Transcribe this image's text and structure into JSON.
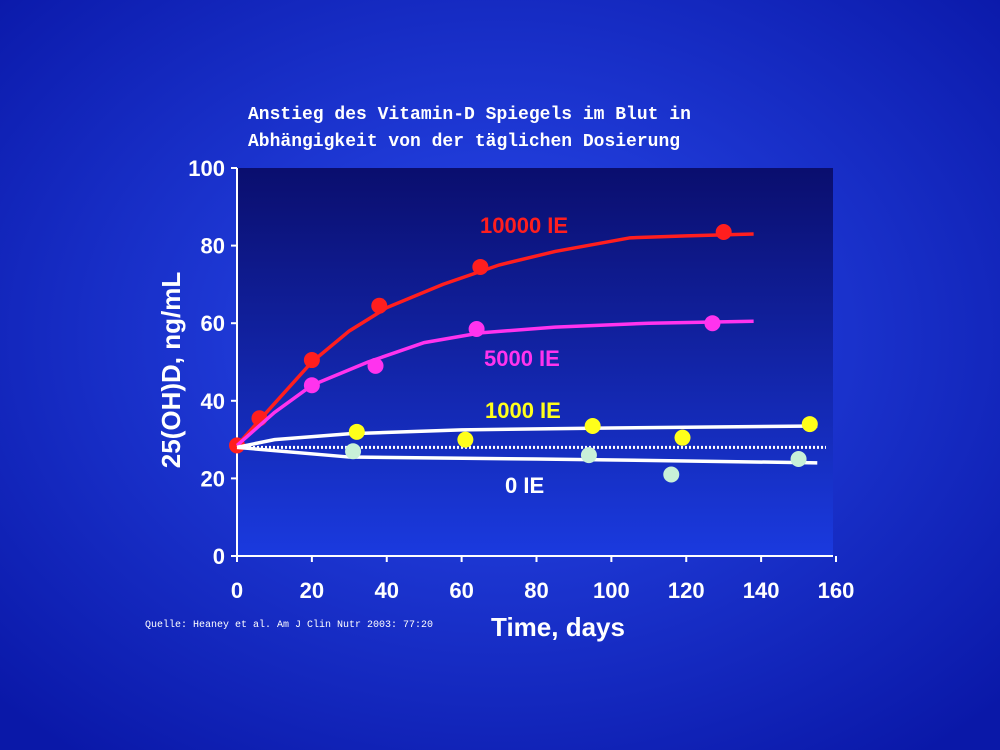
{
  "chart_data": {
    "type": "scatter-fit",
    "title": [
      "Anstieg des Vitamin-D Spiegels im Blut in",
      "Abhängigkeit von der täglichen Dosierung"
    ],
    "x_label": "Time, days",
    "y_label": "25(OH)D, ng/mL",
    "source": "Quelle: Heaney et al. Am J Clin Nutr 2003: 77:20",
    "xlim": [
      0,
      160
    ],
    "xticks": [
      0,
      20,
      40,
      60,
      80,
      100,
      120,
      140,
      160
    ],
    "ylim": [
      0,
      100
    ],
    "yticks": [
      0,
      20,
      40,
      60,
      80,
      100
    ],
    "baseline": 28,
    "series": [
      {
        "name": "10000 IE",
        "color": "#ff1e1e",
        "line_color": "#ff1e1e",
        "label_color": "#ff1e1e",
        "x": [
          0,
          6,
          20,
          38,
          65,
          130
        ],
        "values": [
          28.5,
          35.5,
          50.5,
          64.5,
          74.5,
          83.5
        ],
        "fit_x": [
          0,
          6,
          20,
          30,
          40,
          55,
          70,
          85,
          105,
          120,
          138
        ],
        "fit_values": [
          28.5,
          35,
          50,
          58,
          64,
          70,
          75,
          78.5,
          82,
          82.5,
          83
        ]
      },
      {
        "name": "5000 IE",
        "color": "#ff33ee",
        "line_color": "#ff33ee",
        "label_color": "#ff33ee",
        "x": [
          20,
          37,
          64,
          127
        ],
        "values": [
          44,
          49,
          58.5,
          60
        ],
        "fit_x": [
          0,
          10,
          20,
          35,
          50,
          65,
          85,
          110,
          138
        ],
        "fit_values": [
          28.5,
          37,
          44,
          50,
          55,
          57.5,
          59,
          60,
          60.5
        ]
      },
      {
        "name": "1000 IE",
        "color": "#ffff1a",
        "line_color": "#ffffff",
        "label_color": "#ffff1a",
        "x": [
          32,
          61,
          95,
          119,
          153
        ],
        "values": [
          32,
          30,
          33.5,
          30.5,
          34
        ],
        "fit_x": [
          0,
          10,
          30,
          60,
          100,
          155
        ],
        "fit_values": [
          28,
          30,
          31.5,
          32.5,
          33,
          33.5
        ]
      },
      {
        "name": "0 IE",
        "color": "#c8f0d8",
        "line_color": "#ffffff",
        "label_color": "#ffffff",
        "x": [
          31,
          94,
          116,
          150
        ],
        "values": [
          27,
          26,
          21,
          25
        ],
        "fit_x": [
          0,
          30,
          80,
          120,
          155
        ],
        "fit_values": [
          28,
          25.5,
          25,
          24.5,
          24
        ]
      }
    ]
  }
}
